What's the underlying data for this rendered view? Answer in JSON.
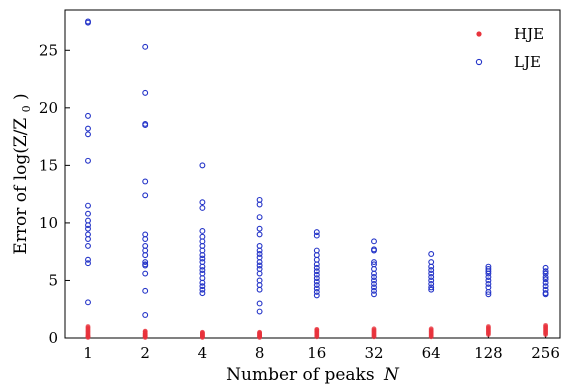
{
  "chart_data": {
    "type": "scatter",
    "xlabel": "Number of peaks",
    "xlabel_symbol": "N",
    "ylabel": "Error of log(Z/Z",
    "ylabel_subscript": "0",
    "ylabel_tail": ")",
    "categories": [
      "1",
      "2",
      "4",
      "8",
      "16",
      "32",
      "64",
      "128",
      "256"
    ],
    "ylim": [
      0,
      28.5
    ],
    "yticks": [
      0,
      5,
      10,
      15,
      20,
      25
    ],
    "yticks_labels": [
      "0",
      "5",
      "10",
      "15",
      "20",
      "25"
    ],
    "legend_position": "top-right",
    "series": [
      {
        "name": "HJE",
        "color": "#e8333c",
        "marker": "filled-circle",
        "points": {
          "1": [
            0.05,
            0.1,
            0.15,
            0.2,
            0.3,
            0.4,
            0.5,
            0.6,
            0.7,
            0.8,
            0.9,
            1.0
          ],
          "2": [
            0.05,
            0.1,
            0.15,
            0.2,
            0.25,
            0.3,
            0.35,
            0.4,
            0.45,
            0.55,
            0.6
          ],
          "4": [
            0.05,
            0.1,
            0.15,
            0.2,
            0.25,
            0.3,
            0.35,
            0.4,
            0.45,
            0.5
          ],
          "8": [
            0.05,
            0.1,
            0.15,
            0.2,
            0.25,
            0.3,
            0.35,
            0.4,
            0.45,
            0.5
          ],
          "16": [
            0.1,
            0.2,
            0.3,
            0.4,
            0.5,
            0.6,
            0.7,
            0.75
          ],
          "32": [
            0.1,
            0.2,
            0.3,
            0.4,
            0.5,
            0.6,
            0.7,
            0.8
          ],
          "64": [
            0.1,
            0.2,
            0.3,
            0.4,
            0.5,
            0.6,
            0.7,
            0.8
          ],
          "128": [
            0.3,
            0.4,
            0.5,
            0.6,
            0.7,
            0.8,
            0.9,
            1.0
          ],
          "256": [
            0.3,
            0.4,
            0.5,
            0.6,
            0.7,
            0.8,
            0.9,
            1.0,
            1.1
          ]
        }
      },
      {
        "name": "LJE",
        "color": "#2434c8",
        "marker": "hollow-circle",
        "points": {
          "1": [
            27.5,
            27.4,
            19.3,
            18.2,
            17.7,
            15.4,
            11.5,
            10.8,
            10.2,
            9.8,
            9.5,
            9.0,
            8.6,
            8.0,
            6.8,
            6.5,
            3.1
          ],
          "2": [
            25.3,
            21.3,
            18.6,
            18.5,
            13.6,
            12.4,
            9.0,
            8.6,
            8.0,
            7.6,
            7.2,
            6.6,
            6.4,
            6.3,
            5.6,
            4.1,
            2.0
          ],
          "4": [
            15.0,
            11.8,
            11.3,
            9.3,
            8.8,
            8.4,
            8.0,
            7.6,
            7.2,
            6.9,
            6.6,
            6.2,
            5.9,
            5.6,
            5.2,
            4.8,
            4.5,
            4.2,
            3.9
          ],
          "8": [
            12.0,
            11.6,
            10.5,
            9.5,
            9.0,
            8.0,
            7.6,
            7.3,
            7.0,
            6.6,
            6.3,
            6.0,
            5.6,
            5.0,
            4.6,
            4.2,
            3.0,
            2.3
          ],
          "16": [
            9.2,
            8.9,
            7.6,
            7.2,
            6.8,
            6.4,
            6.1,
            5.8,
            5.5,
            5.2,
            4.9,
            4.6,
            4.3,
            4.0,
            3.7
          ],
          "32": [
            8.4,
            7.7,
            7.6,
            6.6,
            6.4,
            6.0,
            5.6,
            5.3,
            5.0,
            4.7,
            4.4,
            4.1,
            3.8
          ],
          "64": [
            7.3,
            6.6,
            6.2,
            5.9,
            5.6,
            5.3,
            5.0,
            4.7,
            4.4,
            4.2
          ],
          "128": [
            6.2,
            6.0,
            5.8,
            5.6,
            5.3,
            5.0,
            4.7,
            4.4,
            4.0,
            3.8
          ],
          "256": [
            6.1,
            5.8,
            5.6,
            5.3,
            5.1,
            4.8,
            4.5,
            4.2,
            3.9,
            3.8
          ]
        }
      }
    ]
  }
}
